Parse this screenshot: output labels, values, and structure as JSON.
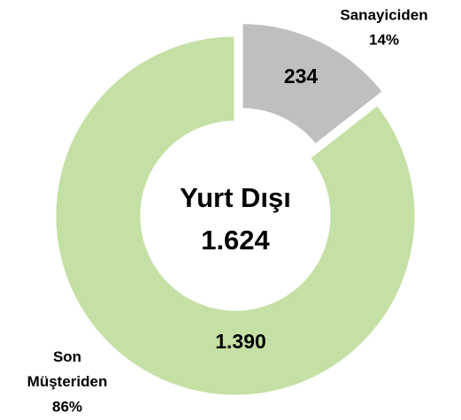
{
  "chart_data": {
    "type": "donut",
    "categories": [
      "Sanayiciden",
      "Son Müşteriden"
    ],
    "values": [
      234,
      1390
    ],
    "value_labels": [
      "234",
      "1.390"
    ],
    "percentages": [
      14,
      86
    ],
    "percentage_labels": [
      "14%",
      "86%"
    ],
    "colors": [
      "#bfbfbf",
      "#c5e0a4"
    ],
    "center_label": "Yurt Dışı",
    "center_value": 1624,
    "center_value_label": "1.624"
  }
}
